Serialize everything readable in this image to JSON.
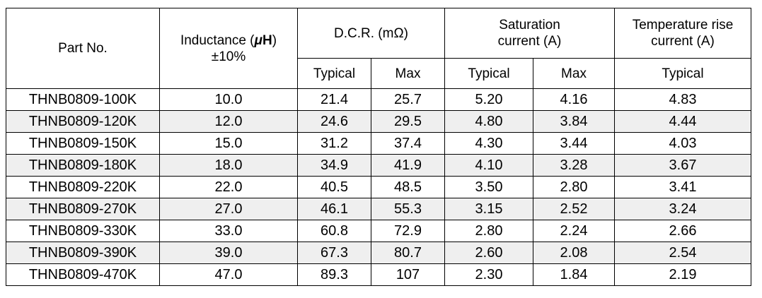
{
  "header": {
    "part_no": "Part No.",
    "inductance_prefix": "Inductance (",
    "inductance_mu": "μ",
    "inductance_h": "H",
    "inductance_suffix": ")",
    "inductance_tol": "±10%",
    "dcr": "D.C.R. (mΩ)",
    "saturation_line1": "Saturation",
    "saturation_line2": "current (A)",
    "temp_line1": "Temperature rise",
    "temp_line2": "current (A)",
    "typical": "Typical",
    "max": "Max"
  },
  "rows": [
    {
      "part": "THNB0809-100K",
      "inductance": "10.0",
      "dcr_typ": "21.4",
      "dcr_max": "25.7",
      "sat_typ": "5.20",
      "sat_max": "4.16",
      "temp_typ": "4.83"
    },
    {
      "part": "THNB0809-120K",
      "inductance": "12.0",
      "dcr_typ": "24.6",
      "dcr_max": "29.5",
      "sat_typ": "4.80",
      "sat_max": "3.84",
      "temp_typ": "4.44"
    },
    {
      "part": "THNB0809-150K",
      "inductance": "15.0",
      "dcr_typ": "31.2",
      "dcr_max": "37.4",
      "sat_typ": "4.30",
      "sat_max": "3.44",
      "temp_typ": "4.03"
    },
    {
      "part": "THNB0809-180K",
      "inductance": "18.0",
      "dcr_typ": "34.9",
      "dcr_max": "41.9",
      "sat_typ": "4.10",
      "sat_max": "3.28",
      "temp_typ": "3.67"
    },
    {
      "part": "THNB0809-220K",
      "inductance": "22.0",
      "dcr_typ": "40.5",
      "dcr_max": "48.5",
      "sat_typ": "3.50",
      "sat_max": "2.80",
      "temp_typ": "3.41"
    },
    {
      "part": "THNB0809-270K",
      "inductance": "27.0",
      "dcr_typ": "46.1",
      "dcr_max": "55.3",
      "sat_typ": "3.15",
      "sat_max": "2.52",
      "temp_typ": "3.24"
    },
    {
      "part": "THNB0809-330K",
      "inductance": "33.0",
      "dcr_typ": "60.8",
      "dcr_max": "72.9",
      "sat_typ": "2.80",
      "sat_max": "2.24",
      "temp_typ": "2.66"
    },
    {
      "part": "THNB0809-390K",
      "inductance": "39.0",
      "dcr_typ": "67.3",
      "dcr_max": "80.7",
      "sat_typ": "2.60",
      "sat_max": "2.08",
      "temp_typ": "2.54"
    },
    {
      "part": "THNB0809-470K",
      "inductance": "47.0",
      "dcr_typ": "89.3",
      "dcr_max": "107",
      "sat_typ": "2.30",
      "sat_max": "1.84",
      "temp_typ": "2.19"
    }
  ],
  "colors": {
    "alt_row_background": "#efefef",
    "border": "#000000"
  }
}
